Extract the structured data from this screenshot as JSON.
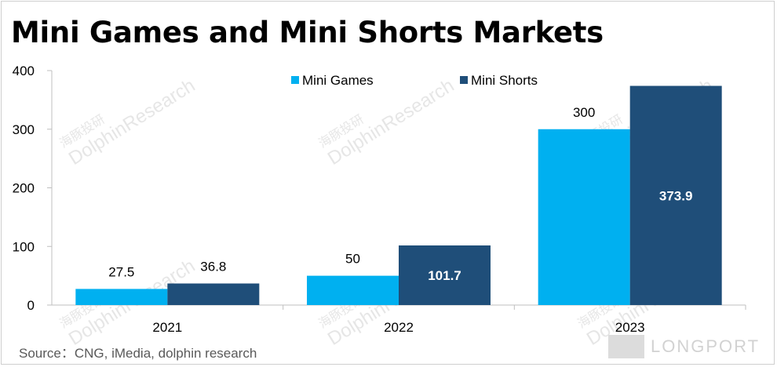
{
  "chart_data": {
    "type": "bar",
    "title": "Mini Games and Mini Shorts Markets",
    "categories": [
      "2021",
      "2022",
      "2023"
    ],
    "series": [
      {
        "name": "Mini Games",
        "values": [
          27.5,
          50,
          300
        ],
        "labels": [
          "27.5",
          "50",
          "300"
        ]
      },
      {
        "name": "Mini Shorts",
        "values": [
          36.8,
          101.7,
          373.9
        ],
        "labels": [
          "36.8",
          "101.7",
          "373.9"
        ]
      }
    ],
    "ylim": [
      0,
      400
    ],
    "yticks": [
      0,
      100,
      200,
      300,
      400
    ],
    "xlabel": "",
    "ylabel": "",
    "legend_position": "top"
  },
  "colors": {
    "mini_games": "#00B0F0",
    "mini_shorts": "#1F4E79"
  },
  "source": "Source：CNG, iMedia, dolphin research",
  "watermark": {
    "text": "DolphinResearch",
    "cn": "海豚投研",
    "brand": "LONGPORT"
  }
}
